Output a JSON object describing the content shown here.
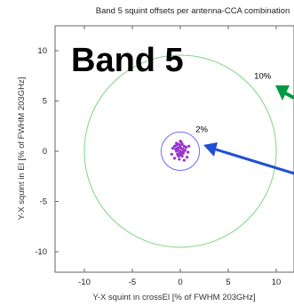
{
  "chart_data": {
    "type": "scatter",
    "title": "Band 5 squint offsets per antenna-CCA combination",
    "xlabel": "Y-X squint in crossEl [% of FWHM 203GHz]",
    "ylabel": "Y-X squint in El [% of FWHM 203GHz]",
    "xlim": [
      -12.5,
      12.5
    ],
    "ylim": [
      -12,
      11.5
    ],
    "xticks": [
      "-10",
      "-5",
      "0",
      "5",
      "10"
    ],
    "xtick_values": [
      -10,
      -5,
      0,
      5,
      10
    ],
    "yticks": [
      "10",
      "5",
      "0",
      "-5",
      "-10"
    ],
    "ytick_values": [
      10,
      5,
      0,
      -5,
      -10
    ],
    "grid": false,
    "band_label": "Band 5",
    "circles": [
      {
        "label": "10%",
        "radius": 10,
        "color": "#7fd47f"
      },
      {
        "label": "2%",
        "radius": 2,
        "color": "#6b6bff"
      }
    ],
    "points": {
      "color": "#9933cc",
      "x": [
        -0.6,
        -0.4,
        -0.2,
        0.0,
        0.2,
        0.4,
        0.6,
        -0.5,
        -0.3,
        -0.1,
        0.1,
        0.3,
        0.5,
        -0.4,
        -0.2,
        0.0,
        0.2,
        0.4,
        -0.3,
        -0.1,
        0.1,
        0.3,
        -0.2,
        0.0,
        0.2,
        -0.8,
        0.8,
        -0.9,
        0.9,
        -0.6,
        0.7,
        0.0,
        -0.1,
        0.1,
        0.4,
        -0.4
      ],
      "y": [
        0.5,
        0.6,
        0.7,
        0.6,
        0.7,
        0.5,
        0.4,
        0.2,
        0.3,
        0.4,
        0.3,
        0.2,
        0.1,
        0.0,
        0.1,
        0.0,
        -0.1,
        0.0,
        -0.3,
        -0.2,
        -0.3,
        -0.2,
        -0.5,
        -0.4,
        -0.5,
        0.3,
        -0.1,
        -0.3,
        0.5,
        -0.7,
        -0.6,
        1.0,
        -0.8,
        0.9,
        -0.9,
        0.8
      ]
    },
    "arrows": [
      {
        "color": "#009944",
        "direction": "left"
      },
      {
        "color": "#1f4fd6",
        "direction": "left"
      }
    ]
  }
}
